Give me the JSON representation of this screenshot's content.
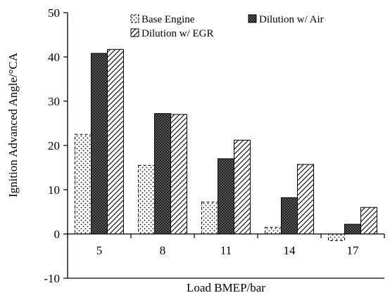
{
  "chart_data": {
    "type": "bar",
    "xlabel": "Load BMEP/bar",
    "ylabel": "Ignition Advanced Angle/°CA",
    "categories": [
      "5",
      "8",
      "11",
      "14",
      "17"
    ],
    "ylim": [
      -10,
      50
    ],
    "yticks": [
      -10,
      0,
      10,
      20,
      30,
      40,
      50
    ],
    "grid": false,
    "legend_position": "top-right",
    "series": [
      {
        "name": "Base Engine",
        "values": [
          22.5,
          15.5,
          7.2,
          1.5,
          -1.5
        ],
        "pattern": "dots"
      },
      {
        "name": "Dilution w/ Air",
        "values": [
          40.8,
          27.2,
          17.0,
          8.2,
          2.2
        ],
        "pattern": "crosshatch"
      },
      {
        "name": "Dilution w/ EGR",
        "values": [
          41.7,
          27.0,
          21.2,
          15.7,
          6.0
        ],
        "pattern": "diagonal"
      }
    ]
  }
}
